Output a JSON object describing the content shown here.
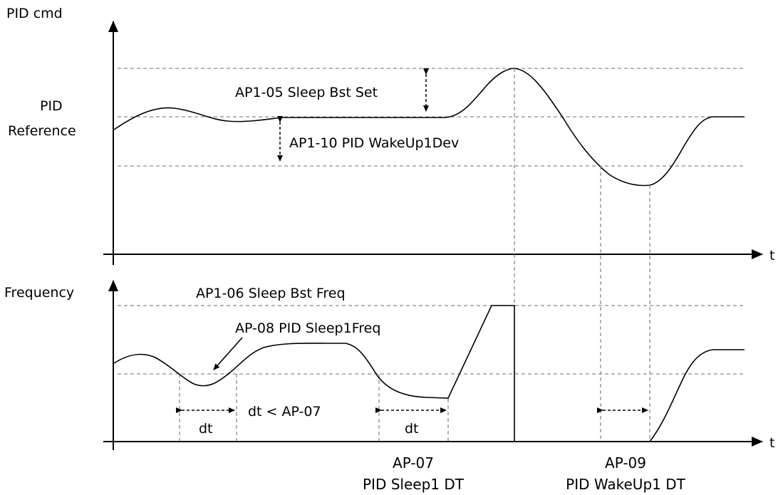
{
  "top_chart": {
    "y_axis_label": "PID cmd",
    "reference_label_line1": "PID",
    "reference_label_line2": "Reference",
    "sleep_bst_set_label": "AP1-05 Sleep Bst Set",
    "wakeup_dev_label": "AP1-10 PID WakeUp1Dev",
    "x_axis_label": "t"
  },
  "bottom_chart": {
    "y_axis_label": "Frequency",
    "sleep_bst_freq_label": "AP1-06 Sleep Bst Freq",
    "sleep_freq_label": "AP-08 PID Sleep1Freq",
    "dt_label_1": "dt",
    "dt_condition_label": "dt < AP-07",
    "dt_label_2": "dt",
    "x_axis_label": "t"
  },
  "bottom_labels": {
    "sleep_dt_code": "AP-07",
    "sleep_dt_name": "PID Sleep1 DT",
    "wakeup_dt_code": "AP-09",
    "wakeup_dt_name": "PID WakeUp1 DT"
  }
}
